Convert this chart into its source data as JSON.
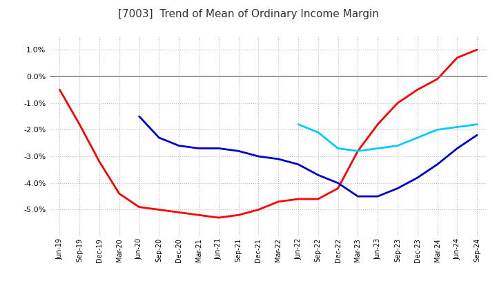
{
  "title": "[7003]  Trend of Mean of Ordinary Income Margin",
  "title_fontsize": 11,
  "background_color": "#ffffff",
  "plot_bg_color": "#ffffff",
  "grid_color": "#bbbbbb",
  "x_labels": [
    "Jun-19",
    "Sep-19",
    "Dec-19",
    "Mar-20",
    "Jun-20",
    "Sep-20",
    "Dec-20",
    "Mar-21",
    "Jun-21",
    "Sep-21",
    "Dec-21",
    "Mar-22",
    "Jun-22",
    "Sep-22",
    "Dec-22",
    "Mar-23",
    "Jun-23",
    "Sep-23",
    "Dec-23",
    "Mar-24",
    "Jun-24",
    "Sep-24"
  ],
  "series": {
    "3 Years": {
      "color": "#ff0000",
      "data": [
        -0.005,
        -0.018,
        -0.032,
        -0.044,
        -0.049,
        -0.05,
        -0.051,
        -0.052,
        -0.053,
        -0.052,
        -0.05,
        -0.047,
        -0.046,
        -0.046,
        -0.042,
        -0.028,
        -0.018,
        -0.01,
        -0.005,
        -0.001,
        0.007,
        0.01
      ]
    },
    "5 Years": {
      "color": "#0000cc",
      "data": [
        null,
        null,
        null,
        null,
        -0.015,
        -0.023,
        -0.026,
        -0.027,
        -0.027,
        -0.028,
        -0.03,
        -0.031,
        -0.033,
        -0.037,
        -0.04,
        -0.045,
        -0.045,
        -0.042,
        -0.038,
        -0.033,
        -0.027,
        -0.022
      ]
    },
    "7 Years": {
      "color": "#00ccff",
      "data": [
        null,
        null,
        null,
        null,
        null,
        null,
        null,
        null,
        null,
        null,
        null,
        null,
        -0.018,
        -0.021,
        -0.027,
        -0.028,
        -0.027,
        -0.026,
        -0.023,
        -0.02,
        -0.019,
        -0.018
      ]
    },
    "10 Years": {
      "color": "#007700",
      "data": [
        null,
        null,
        null,
        null,
        null,
        null,
        null,
        null,
        null,
        null,
        null,
        null,
        null,
        null,
        null,
        null,
        null,
        null,
        null,
        null,
        null,
        null
      ]
    }
  },
  "ylim": [
    -0.06,
    0.015
  ],
  "yticks": [
    0.01,
    0.0,
    -0.01,
    -0.02,
    -0.03,
    -0.04,
    -0.05
  ],
  "yticklabels": [
    "1.0%",
    "0.0%",
    "-1.0%",
    "-2.0%",
    "-3.0%",
    "-4.0%",
    "-5.0%"
  ],
  "line_width": 2.0,
  "figsize": [
    7.2,
    4.4
  ],
  "dpi": 100
}
